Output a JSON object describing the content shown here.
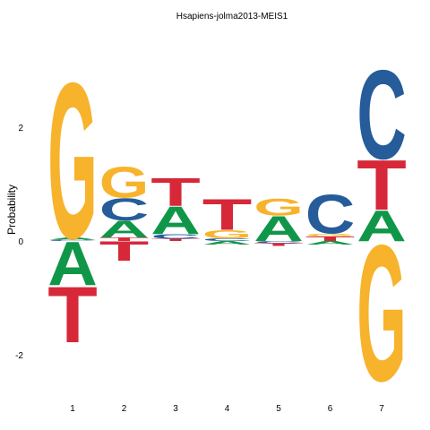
{
  "chart_data": {
    "type": "sequence-logo",
    "title": "Hsapiens-jolma2013-MEIS1",
    "ylabel": "Probability",
    "ylim": [
      -2.5,
      3.5
    ],
    "yticks": [
      -2,
      0,
      2
    ],
    "positions": [
      "1",
      "2",
      "3",
      "4",
      "5",
      "6",
      "7"
    ],
    "colors": {
      "A": "#109648",
      "C": "#255c99",
      "G": "#f7b32b",
      "T": "#d62839"
    },
    "stacks": [
      {
        "position": "1",
        "above": [
          [
            "C",
            0.02
          ],
          [
            "A",
            0.04
          ],
          [
            "G",
            2.8
          ]
        ],
        "below": [
          [
            "A",
            -0.78
          ],
          [
            "T",
            -1.0
          ]
        ]
      },
      {
        "position": "2",
        "above": [
          [
            "T",
            0.06
          ],
          [
            "A",
            0.3
          ],
          [
            "C",
            0.4
          ],
          [
            "G",
            0.55
          ]
        ],
        "below": [
          [
            "T",
            -0.35
          ]
        ]
      },
      {
        "position": "3",
        "above": [
          [
            "T",
            0.04
          ],
          [
            "C",
            0.08
          ],
          [
            "A",
            0.5
          ],
          [
            "T",
            0.5
          ]
        ],
        "below": []
      },
      {
        "position": "4",
        "above": [
          [
            "C",
            0.05
          ],
          [
            "G",
            0.15
          ],
          [
            "T",
            0.55
          ]
        ],
        "below": [
          [
            "A",
            -0.06
          ]
        ]
      },
      {
        "position": "5",
        "above": [
          [
            "A",
            0.45
          ],
          [
            "G",
            0.3
          ]
        ],
        "below": [
          [
            "C",
            -0.04
          ],
          [
            "T",
            -0.05
          ]
        ]
      },
      {
        "position": "6",
        "above": [
          [
            "T",
            0.08
          ],
          [
            "G",
            0.05
          ],
          [
            "C",
            0.7
          ]
        ],
        "below": [
          [
            "A",
            -0.06
          ]
        ]
      },
      {
        "position": "7",
        "above": [
          [
            "A",
            0.55
          ],
          [
            "T",
            0.9
          ],
          [
            "C",
            1.6
          ]
        ],
        "below": [
          [
            "G",
            -2.45
          ]
        ]
      }
    ]
  }
}
